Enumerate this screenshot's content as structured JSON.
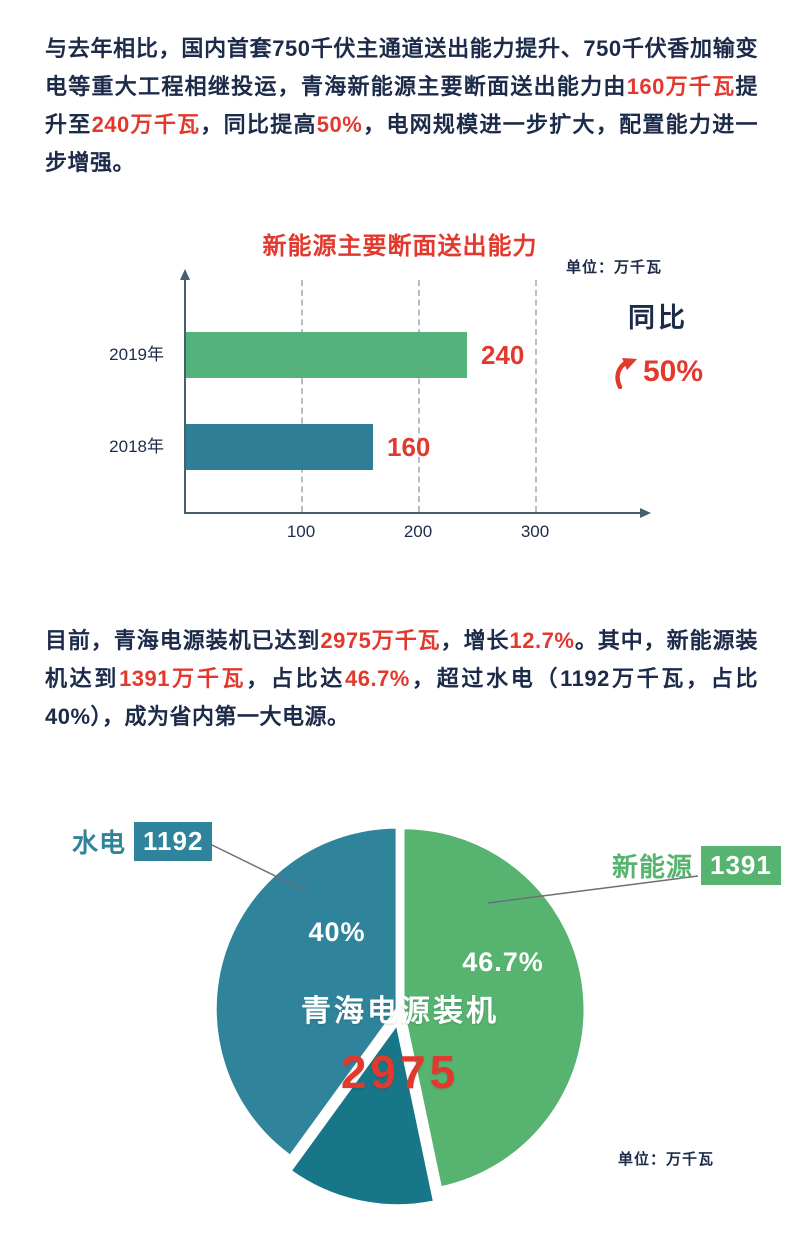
{
  "colors": {
    "dark_text": "#1c2b4a",
    "accent_red": "#e2392e",
    "teal": "#2f849b",
    "green": "#57b370",
    "dark_teal": "#177687",
    "axis": "#44606f"
  },
  "paragraph1": {
    "segments": [
      {
        "text": "与去年相比，国内首套750千伏主通道送出能力提升、750千伏香加输变电等重大工程相继投运，青海新能源主要断面送出能力由",
        "color": "dark"
      },
      {
        "text": "160万千瓦",
        "color": "red"
      },
      {
        "text": "提升至",
        "color": "dark"
      },
      {
        "text": "240万千瓦",
        "color": "red"
      },
      {
        "text": "，同比提高",
        "color": "dark"
      },
      {
        "text": "50%",
        "color": "red"
      },
      {
        "text": "，电网规模进一步扩大，配置能力进一步增强。",
        "color": "dark"
      }
    ]
  },
  "paragraph2": {
    "segments": [
      {
        "text": "目前，青海电源装机已达到",
        "color": "dark"
      },
      {
        "text": "2975万千瓦",
        "color": "red"
      },
      {
        "text": "，增长",
        "color": "dark"
      },
      {
        "text": "12.7%",
        "color": "red"
      },
      {
        "text": "。其中，新能源装机达到",
        "color": "dark"
      },
      {
        "text": "1391万千瓦",
        "color": "red"
      },
      {
        "text": "，占比达",
        "color": "dark"
      },
      {
        "text": "46.7%",
        "color": "red"
      },
      {
        "text": "，超过水电（1192万千瓦，占比40%），成为省内第一大电源。",
        "color": "dark"
      }
    ]
  },
  "chart_data": [
    {
      "type": "bar",
      "title": "新能源主要断面送出能力",
      "unit": "单位：万千瓦",
      "categories": [
        "2019年",
        "2018年"
      ],
      "values": [
        240,
        160
      ],
      "colors": [
        "#53b37b",
        "#2e7f95"
      ],
      "xticks": [
        100,
        200,
        300
      ],
      "xlim": [
        0,
        390
      ],
      "legend_position": "none",
      "grid": "dashed-vertical",
      "annotation": {
        "label": "同比",
        "value": "50%"
      }
    },
    {
      "type": "pie",
      "center_title": "青海电源装机",
      "center_value": "2975",
      "unit": "单位：万千瓦",
      "slices": [
        {
          "name": "新能源",
          "value": 1391,
          "pct": 46.7,
          "label": "46.7%",
          "color": "#57b370"
        },
        {
          "name": "",
          "pct": 13.3,
          "label": "",
          "color": "#177687"
        },
        {
          "name": "水电",
          "value": 1192,
          "pct": 40,
          "label": "40%",
          "color": "#2f849b"
        }
      ]
    }
  ]
}
